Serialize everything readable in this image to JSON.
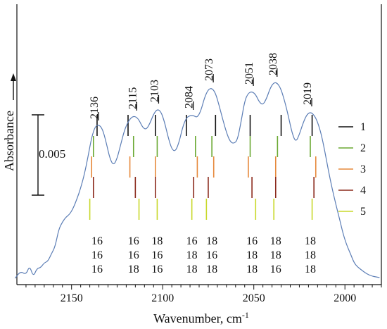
{
  "chart_data": {
    "type": "line",
    "title": "",
    "xlabel": "Wavenumber, cm",
    "xlabel_superscript": "-1",
    "ylabel": "Absorbance",
    "xlim": [
      2180,
      1980
    ],
    "x_reversed": true,
    "x_ticks": [
      2150,
      2100,
      2050,
      2000
    ],
    "line_color": "#5b7db5",
    "scale_bar": {
      "label": "0.005",
      "value": 0.005
    },
    "peak_labels": [
      {
        "x": 2136,
        "label": "2136"
      },
      {
        "x": 2115,
        "label": "2115"
      },
      {
        "x": 2103,
        "label": "2103"
      },
      {
        "x": 2084,
        "label": "2084"
      },
      {
        "x": 2073,
        "label": "2073"
      },
      {
        "x": 2051,
        "label": "2051"
      },
      {
        "x": 2038,
        "label": "2038"
      },
      {
        "x": 2019,
        "label": "2019"
      }
    ],
    "series": [
      {
        "values": [
          [
            2181,
            0.0
          ],
          [
            2178,
            0.001
          ],
          [
            2175,
            0.0005
          ],
          [
            2173,
            0.0018
          ],
          [
            2171,
            0.0002
          ],
          [
            2169,
            0.0014
          ],
          [
            2167,
            0.0015
          ],
          [
            2165,
            0.0022
          ],
          [
            2163,
            0.0024
          ],
          [
            2161,
            0.0035
          ],
          [
            2159,
            0.0045
          ],
          [
            2157,
            0.007
          ],
          [
            2155,
            0.008
          ],
          [
            2153,
            0.0087
          ],
          [
            2151,
            0.0091
          ],
          [
            2149,
            0.01
          ],
          [
            2147,
            0.0113
          ],
          [
            2145,
            0.0128
          ],
          [
            2143,
            0.0147
          ],
          [
            2141,
            0.0172
          ],
          [
            2139,
            0.02
          ],
          [
            2137,
            0.0216
          ],
          [
            2135,
            0.0218
          ],
          [
            2133,
            0.0212
          ],
          [
            2131,
            0.0193
          ],
          [
            2129,
            0.017
          ],
          [
            2127,
            0.016
          ],
          [
            2125,
            0.017
          ],
          [
            2123,
            0.019
          ],
          [
            2121,
            0.021
          ],
          [
            2119,
            0.0222
          ],
          [
            2117,
            0.0229
          ],
          [
            2115,
            0.023
          ],
          [
            2113,
            0.0225
          ],
          [
            2111,
            0.0214
          ],
          [
            2109,
            0.0211
          ],
          [
            2107,
            0.022
          ],
          [
            2105,
            0.0233
          ],
          [
            2103,
            0.024
          ],
          [
            2101,
            0.0237
          ],
          [
            2099,
            0.0222
          ],
          [
            2097,
            0.02
          ],
          [
            2095,
            0.0183
          ],
          [
            2093,
            0.018
          ],
          [
            2091,
            0.0193
          ],
          [
            2089,
            0.0215
          ],
          [
            2087,
            0.0228
          ],
          [
            2085,
            0.0231
          ],
          [
            2083,
            0.0231
          ],
          [
            2081,
            0.0228
          ],
          [
            2079,
            0.0238
          ],
          [
            2077,
            0.0257
          ],
          [
            2075,
            0.0268
          ],
          [
            2073,
            0.027
          ],
          [
            2071,
            0.0263
          ],
          [
            2069,
            0.0245
          ],
          [
            2067,
            0.0225
          ],
          [
            2065,
            0.0207
          ],
          [
            2063,
            0.0194
          ],
          [
            2061,
            0.0191
          ],
          [
            2059,
            0.0196
          ],
          [
            2057,
            0.0222
          ],
          [
            2055,
            0.0252
          ],
          [
            2053,
            0.0263
          ],
          [
            2051,
            0.0265
          ],
          [
            2049,
            0.0261
          ],
          [
            2047,
            0.025
          ],
          [
            2045,
            0.0246
          ],
          [
            2043,
            0.0255
          ],
          [
            2041,
            0.027
          ],
          [
            2039,
            0.0278
          ],
          [
            2037,
            0.0277
          ],
          [
            2035,
            0.0268
          ],
          [
            2033,
            0.0251
          ],
          [
            2031,
            0.023
          ],
          [
            2029,
            0.0206
          ],
          [
            2027,
            0.0193
          ],
          [
            2025,
            0.0204
          ],
          [
            2023,
            0.022
          ],
          [
            2021,
            0.0232
          ],
          [
            2019,
            0.0236
          ],
          [
            2017,
            0.0232
          ],
          [
            2015,
            0.0222
          ],
          [
            2013,
            0.0205
          ],
          [
            2011,
            0.018
          ],
          [
            2009,
            0.0152
          ],
          [
            2007,
            0.0127
          ],
          [
            2005,
            0.0105
          ],
          [
            2003,
            0.0085
          ],
          [
            2001,
            0.0063
          ],
          [
            1999,
            0.0047
          ],
          [
            1997,
            0.0035
          ],
          [
            1995,
            0.0022
          ],
          [
            1993,
            0.0016
          ],
          [
            1991,
            0.0012
          ],
          [
            1989,
            0.0008
          ],
          [
            1987,
            0.0005
          ],
          [
            1985,
            0.0003
          ],
          [
            1983,
            0.0002
          ],
          [
            1981,
            0.0001
          ]
        ]
      }
    ],
    "legend": [
      {
        "label": "1",
        "color": "#111111"
      },
      {
        "label": "2",
        "color": "#6aa832"
      },
      {
        "label": "3",
        "color": "#e6893c"
      },
      {
        "label": "4",
        "color": "#8b2a1c"
      },
      {
        "label": "5",
        "color": "#c8d82a"
      }
    ],
    "stick_rows": [
      {
        "color": "#111111",
        "positions": [
          2136,
          2119,
          2104,
          2087,
          2071,
          2052,
          2035,
          2018
        ]
      },
      {
        "color": "#6aa832",
        "positions": [
          2138,
          2116,
          2103,
          2082,
          2073,
          2052,
          2037,
          2019
        ]
      },
      {
        "color": "#e6893c",
        "positions": [
          2139,
          2118,
          2104,
          2081,
          2072,
          2053,
          2038,
          2016
        ]
      },
      {
        "color": "#8b2a1c",
        "positions": [
          2138,
          2115,
          2104,
          2083,
          2075,
          2051,
          2038,
          2017
        ]
      },
      {
        "color": "#c8d82a",
        "positions": [
          2140,
          2113,
          2103,
          2084,
          2076,
          2049,
          2039,
          2018
        ]
      }
    ],
    "isotope_columns": [
      {
        "x": 2136,
        "values": [
          "16",
          "16",
          "16"
        ]
      },
      {
        "x": 2116,
        "values": [
          "16",
          "16",
          "18"
        ]
      },
      {
        "x": 2103,
        "values": [
          "18",
          "16",
          "16"
        ]
      },
      {
        "x": 2084,
        "values": [
          "16",
          "18",
          "18"
        ]
      },
      {
        "x": 2073,
        "values": [
          "18",
          "16",
          "18"
        ]
      },
      {
        "x": 2051,
        "values": [
          "16",
          "18",
          "18"
        ]
      },
      {
        "x": 2038,
        "values": [
          "18",
          "18",
          "16"
        ]
      },
      {
        "x": 2019,
        "values": [
          "18",
          "18",
          "18"
        ]
      }
    ]
  }
}
